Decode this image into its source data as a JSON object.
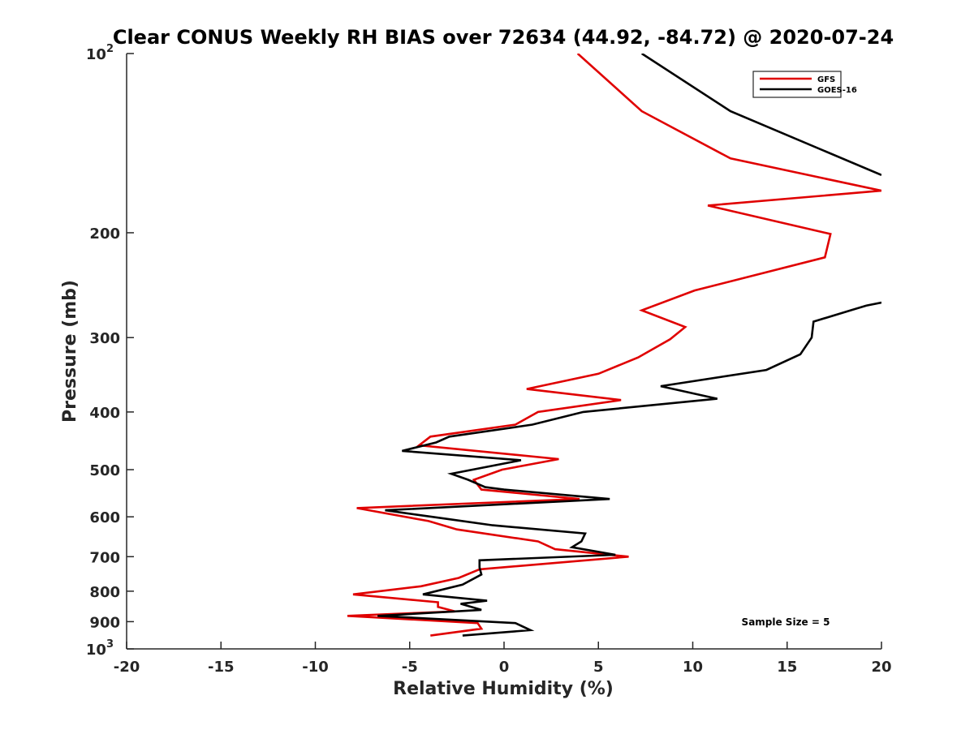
{
  "chart_data": {
    "type": "line",
    "title": "Clear CONUS Weekly RH BIAS over 72634 (44.92, -84.72) @ 2020-07-24",
    "xlabel": "Relative Humidity (%)",
    "ylabel": "Pressure (mb)",
    "xlim": [
      -20,
      20
    ],
    "ylim": [
      100,
      1000
    ],
    "yscale": "log",
    "y_reversed": true,
    "grid": false,
    "legend_position": "top-right",
    "x_ticks": [
      "-20",
      "-15",
      "-10",
      "-5",
      "0",
      "5",
      "10",
      "15",
      "20"
    ],
    "y_ticks": [
      {
        "base": "10",
        "exp": "2",
        "value": 100
      },
      {
        "base": "200",
        "exp": "",
        "value": 200
      },
      {
        "base": "300",
        "exp": "",
        "value": 300
      },
      {
        "base": "400",
        "exp": "",
        "value": 400
      },
      {
        "base": "500",
        "exp": "",
        "value": 500
      },
      {
        "base": "600",
        "exp": "",
        "value": 600
      },
      {
        "base": "700",
        "exp": "",
        "value": 700
      },
      {
        "base": "800",
        "exp": "",
        "value": 800
      },
      {
        "base": "900",
        "exp": "",
        "value": 900
      },
      {
        "base": "10",
        "exp": "3",
        "value": 1000
      }
    ],
    "series": [
      {
        "name": "GFS",
        "color": "#e00000",
        "points": [
          [
            3.9,
            100
          ],
          [
            7.3,
            125
          ],
          [
            12.0,
            150
          ],
          [
            20.0,
            170
          ],
          [
            10.8,
            180
          ],
          [
            17.3,
            201
          ],
          [
            17.0,
            220
          ],
          [
            10.1,
            250
          ],
          [
            7.3,
            270
          ],
          [
            9.6,
            288
          ],
          [
            8.8,
            302
          ],
          [
            7.1,
            324
          ],
          [
            5.0,
            345
          ],
          [
            1.2,
            366
          ],
          [
            6.2,
            382
          ],
          [
            1.8,
            400
          ],
          [
            0.6,
            420
          ],
          [
            -3.9,
            440
          ],
          [
            -4.5,
            455
          ],
          [
            2.9,
            480
          ],
          [
            -0.1,
            500
          ],
          [
            -1.6,
            520
          ],
          [
            -1.2,
            540
          ],
          [
            4.0,
            560
          ],
          [
            -7.8,
            580
          ],
          [
            -4.0,
            610
          ],
          [
            -2.5,
            630
          ],
          [
            1.8,
            660
          ],
          [
            2.7,
            680
          ],
          [
            6.6,
            700
          ],
          [
            -1.3,
            735
          ],
          [
            -2.4,
            760
          ],
          [
            -4.4,
            785
          ],
          [
            -8.0,
            810
          ],
          [
            -3.5,
            835
          ],
          [
            -3.5,
            850
          ],
          [
            -2.6,
            865
          ],
          [
            -8.3,
            880
          ],
          [
            -1.4,
            905
          ],
          [
            -1.2,
            925
          ],
          [
            -3.9,
            950
          ]
        ]
      },
      {
        "name": "GOES-16",
        "color": "#000000",
        "points": [
          [
            7.3,
            100
          ],
          [
            12.0,
            125
          ],
          [
            20.0,
            160
          ],
          null,
          [
            20.0,
            262
          ],
          [
            19.2,
            265
          ],
          [
            16.4,
            282
          ],
          [
            16.3,
            300
          ],
          [
            15.7,
            320
          ],
          [
            13.9,
            340
          ],
          [
            8.3,
            362
          ],
          [
            11.3,
            380
          ],
          [
            4.2,
            400
          ],
          [
            1.5,
            420
          ],
          [
            -2.9,
            440
          ],
          [
            -3.6,
            450
          ],
          [
            -5.4,
            465
          ],
          [
            0.9,
            482
          ],
          [
            -2.8,
            508
          ],
          [
            -1.9,
            520
          ],
          [
            -1.0,
            535
          ],
          [
            0.0,
            540
          ],
          [
            5.6,
            560
          ],
          [
            -6.3,
            585
          ],
          [
            -3.0,
            605
          ],
          [
            -0.6,
            620
          ],
          [
            4.3,
            640
          ],
          [
            4.1,
            660
          ],
          [
            3.6,
            675
          ],
          [
            5.9,
            695
          ],
          [
            -1.3,
            710
          ],
          [
            -1.3,
            730
          ],
          [
            -1.2,
            750
          ],
          [
            -2.2,
            780
          ],
          [
            -4.3,
            810
          ],
          [
            -0.9,
            830
          ],
          [
            -2.3,
            840
          ],
          [
            -1.2,
            860
          ],
          [
            -6.7,
            880
          ],
          [
            0.6,
            905
          ],
          [
            1.4,
            930
          ],
          [
            -2.2,
            950
          ]
        ]
      }
    ],
    "annotation": "Sample Size = 5"
  }
}
